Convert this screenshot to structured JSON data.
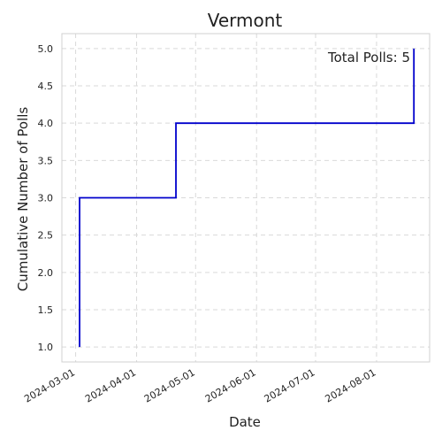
{
  "chart_data": {
    "type": "line",
    "title": "Vermont",
    "xlabel": "Date",
    "ylabel": "Cumulative Number of Polls",
    "x_ticks": [
      "2024-03-01",
      "2024-04-01",
      "2024-05-01",
      "2024-06-01",
      "2024-07-01",
      "2024-08-01"
    ],
    "y_ticks": [
      "1.0",
      "1.5",
      "2.0",
      "2.5",
      "3.0",
      "3.5",
      "4.0",
      "4.5",
      "5.0"
    ],
    "xlim": [
      "2024-02-23",
      "2024-08-28"
    ],
    "ylim": [
      0.8,
      5.2
    ],
    "grid": true,
    "series": [
      {
        "color": "#0000cc",
        "step": "post",
        "x": [
          "2024-03-03",
          "2024-03-03",
          "2024-04-21",
          "2024-08-20"
        ],
        "y": [
          1,
          3,
          4,
          5
        ]
      }
    ],
    "annotation": "Total Polls: 5"
  }
}
